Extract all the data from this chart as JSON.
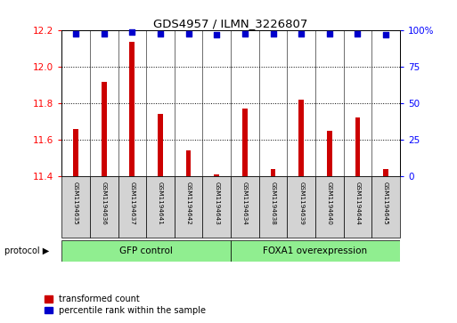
{
  "title": "GDS4957 / ILMN_3226807",
  "samples": [
    "GSM1194635",
    "GSM1194636",
    "GSM1194637",
    "GSM1194641",
    "GSM1194642",
    "GSM1194643",
    "GSM1194634",
    "GSM1194638",
    "GSM1194639",
    "GSM1194640",
    "GSM1194644",
    "GSM1194645"
  ],
  "transformed_counts": [
    11.66,
    11.92,
    12.14,
    11.74,
    11.54,
    11.41,
    11.77,
    11.44,
    11.82,
    11.65,
    11.72,
    11.44
  ],
  "percentile_ranks": [
    98,
    98,
    99,
    98,
    98,
    97,
    98,
    98,
    98,
    98,
    98,
    97
  ],
  "group1_label": "GFP control",
  "group2_label": "FOXA1 overexpression",
  "group1_count": 6,
  "group2_count": 6,
  "ylim_left": [
    11.4,
    12.2
  ],
  "ylim_right": [
    0,
    100
  ],
  "yticks_left": [
    11.4,
    11.6,
    11.8,
    12.0,
    12.2
  ],
  "yticks_right": [
    0,
    25,
    50,
    75,
    100
  ],
  "bar_color": "#cc0000",
  "dot_color": "#0000cc",
  "group1_color": "#90ee90",
  "group2_color": "#90ee90",
  "bg_color": "#d3d3d3",
  "legend_red_label": "transformed count",
  "legend_blue_label": "percentile rank within the sample",
  "protocol_label": "protocol"
}
